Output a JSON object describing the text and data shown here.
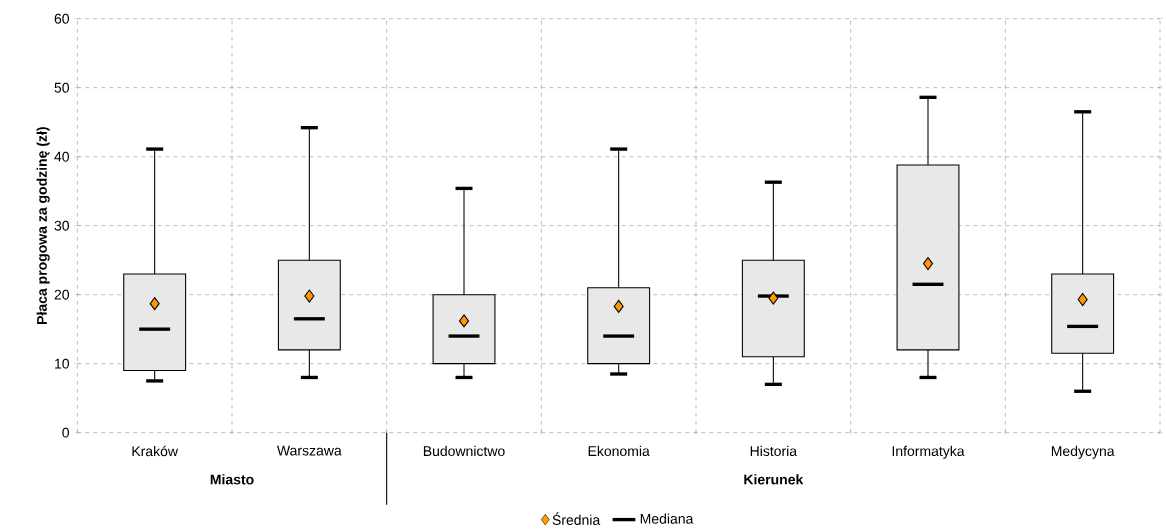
{
  "chart_data": {
    "type": "box",
    "ylabel": "Płaca progowa za godzinę (zł)",
    "categories": [
      "Kraków",
      "Warszawa",
      "Budownictwo",
      "Ekonomia",
      "Historia",
      "Informatyka",
      "Medycyna"
    ],
    "series": [
      {
        "type": "scatter",
        "name": "Średnia",
        "color": "#ff9900",
        "marker": "diamond",
        "values": [
          18.7,
          19.8,
          16.2,
          18.3,
          19.5,
          24.5,
          19.3
        ]
      },
      {
        "type": "box",
        "name": "Mediana",
        "color": "#000000",
        "boxes": [
          {
            "low": 7.5,
            "q1": 9,
            "median": 15,
            "q3": 23,
            "high": 41.1
          },
          {
            "low": 8,
            "q1": 12,
            "median": 16.5,
            "q3": 25,
            "high": 44.2
          },
          {
            "low": 8,
            "q1": 10,
            "median": 14,
            "q3": 20,
            "high": 35.4
          },
          {
            "low": 8.5,
            "q1": 10,
            "median": 14,
            "q3": 21,
            "high": 41.1
          },
          {
            "low": 7,
            "q1": 11,
            "median": 19.8,
            "q3": 25,
            "high": 36.3
          },
          {
            "low": 8,
            "q1": 12,
            "median": 21.5,
            "q3": 38.8,
            "high": 48.6
          },
          {
            "low": 6,
            "q1": 11.5,
            "median": 15.4,
            "q3": 23,
            "high": 46.5
          }
        ]
      }
    ],
    "annotations": [
      "Miasto",
      "Kierunek"
    ],
    "ylim": [
      0,
      60
    ],
    "yticks": [
      0,
      10,
      20,
      30,
      40,
      50,
      60
    ],
    "grid": true,
    "legend": "bottom"
  }
}
